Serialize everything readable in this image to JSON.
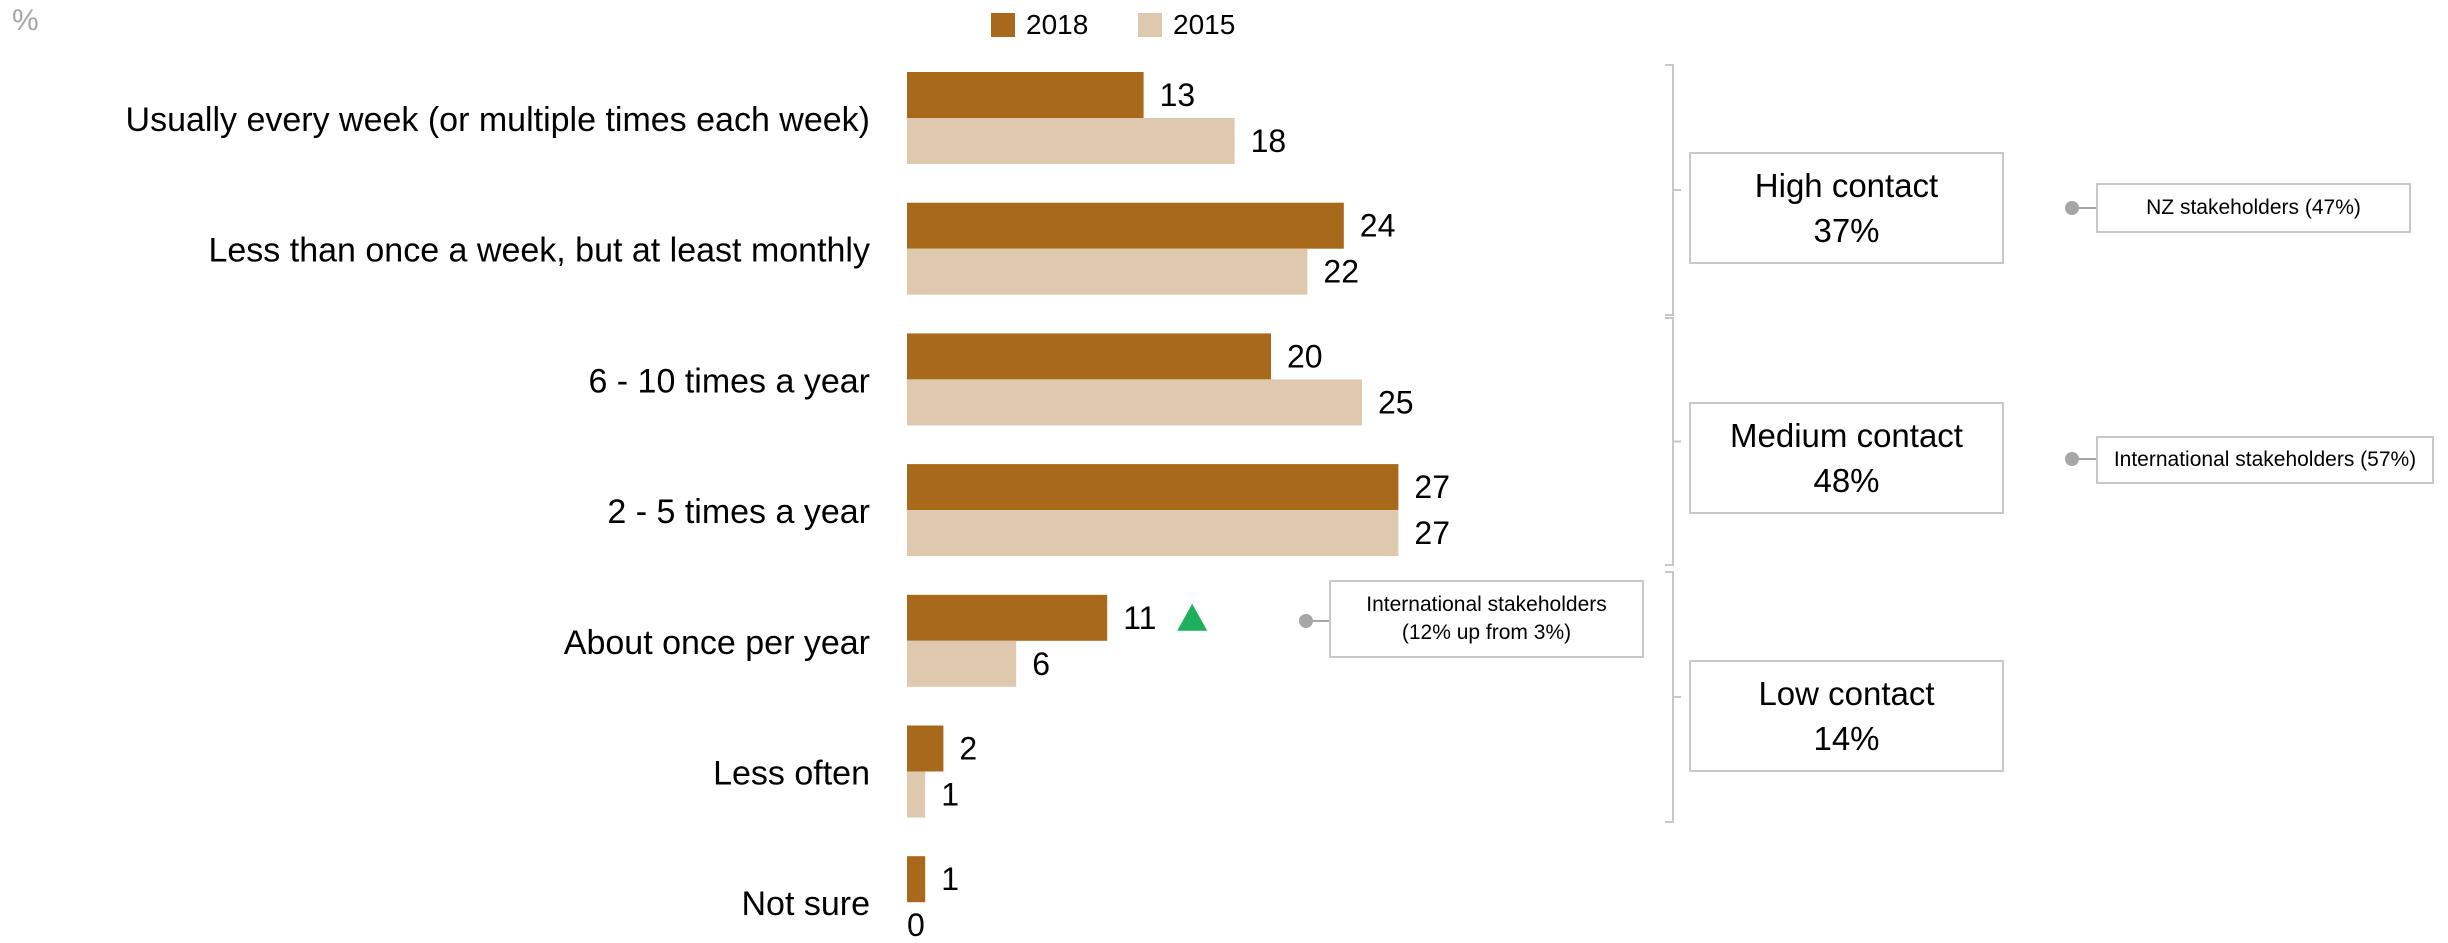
{
  "unit_label": "%",
  "colors": {
    "s2018": "#A8691B",
    "s2015": "#DEC9AE",
    "up_arrow": "#1DAF5C",
    "box_border": "#C8C8C8",
    "connector": "#A6A6A6"
  },
  "chart_data": {
    "type": "bar",
    "orientation": "horizontal",
    "categories": [
      "Usually every week (or multiple times each week)",
      "Less than once a week, but at least monthly",
      "6 - 10 times a year",
      "2 - 5 times a year",
      "About once per year",
      "Less often",
      "Not sure"
    ],
    "series": [
      {
        "name": "2018",
        "values": [
          13,
          24,
          20,
          27,
          11,
          2,
          1
        ]
      },
      {
        "name": "2015",
        "values": [
          18,
          22,
          25,
          27,
          6,
          1,
          0
        ]
      }
    ],
    "xlim": [
      0,
      27
    ],
    "legend": "top",
    "grid": false,
    "ylabel": "%",
    "significant_increase": {
      "category": "About once per year",
      "series": "2018"
    }
  },
  "groups": [
    {
      "label": "High contact",
      "value": "37%"
    },
    {
      "label": "Medium contact",
      "value": "48%"
    },
    {
      "label": "Low contact",
      "value": "14%"
    }
  ],
  "notes": [
    {
      "text": "NZ stakeholders (47%)"
    },
    {
      "text": "International stakeholders (57%)"
    },
    {
      "line1": "International stakeholders",
      "line2": "(12% up from 3%)"
    }
  ]
}
